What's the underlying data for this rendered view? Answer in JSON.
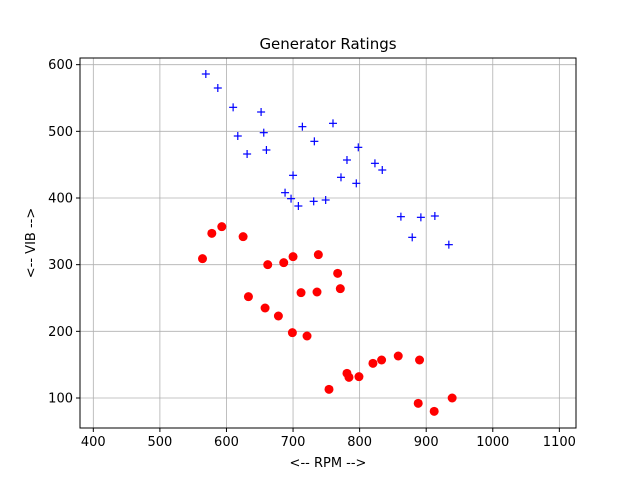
{
  "chart_data": {
    "type": "scatter",
    "title": "Generator Ratings",
    "xlabel": "<-- RPM -->",
    "ylabel": "<-- VIB -->",
    "xlim": [
      380,
      1125
    ],
    "ylim": [
      55,
      610
    ],
    "xticks": [
      400,
      500,
      600,
      700,
      800,
      900,
      1000,
      1100
    ],
    "yticks": [
      100,
      200,
      300,
      400,
      500,
      600
    ],
    "grid": true,
    "series": [
      {
        "name": "blue-plus",
        "marker": "plus",
        "color": "#0000ff",
        "points": [
          [
            569,
            586
          ],
          [
            587,
            565
          ],
          [
            610,
            536
          ],
          [
            617,
            493
          ],
          [
            631,
            466
          ],
          [
            652,
            529
          ],
          [
            656,
            498
          ],
          [
            660,
            472
          ],
          [
            700,
            434
          ],
          [
            714,
            507
          ],
          [
            732,
            485
          ],
          [
            760,
            512
          ],
          [
            781,
            457
          ],
          [
            798,
            476
          ],
          [
            688,
            408
          ],
          [
            697,
            399
          ],
          [
            708,
            388
          ],
          [
            731,
            395
          ],
          [
            749,
            397
          ],
          [
            772,
            431
          ],
          [
            795,
            422
          ],
          [
            823,
            452
          ],
          [
            834,
            442
          ],
          [
            862,
            372
          ],
          [
            892,
            371
          ],
          [
            913,
            373
          ],
          [
            879,
            341
          ],
          [
            934,
            330
          ]
        ]
      },
      {
        "name": "red-circle",
        "marker": "circle",
        "color": "#ff0000",
        "points": [
          [
            564,
            309
          ],
          [
            578,
            347
          ],
          [
            593,
            357
          ],
          [
            625,
            342
          ],
          [
            662,
            300
          ],
          [
            686,
            303
          ],
          [
            700,
            312
          ],
          [
            738,
            315
          ],
          [
            767,
            287
          ],
          [
            771,
            264
          ],
          [
            712,
            258
          ],
          [
            736,
            259
          ],
          [
            633,
            252
          ],
          [
            658,
            235
          ],
          [
            678,
            223
          ],
          [
            699,
            198
          ],
          [
            721,
            193
          ],
          [
            781,
            137
          ],
          [
            784,
            131
          ],
          [
            754,
            113
          ],
          [
            799,
            132
          ],
          [
            820,
            152
          ],
          [
            833,
            157
          ],
          [
            858,
            163
          ],
          [
            890,
            157
          ],
          [
            888,
            92
          ],
          [
            912,
            80
          ],
          [
            939,
            100
          ]
        ]
      }
    ]
  }
}
